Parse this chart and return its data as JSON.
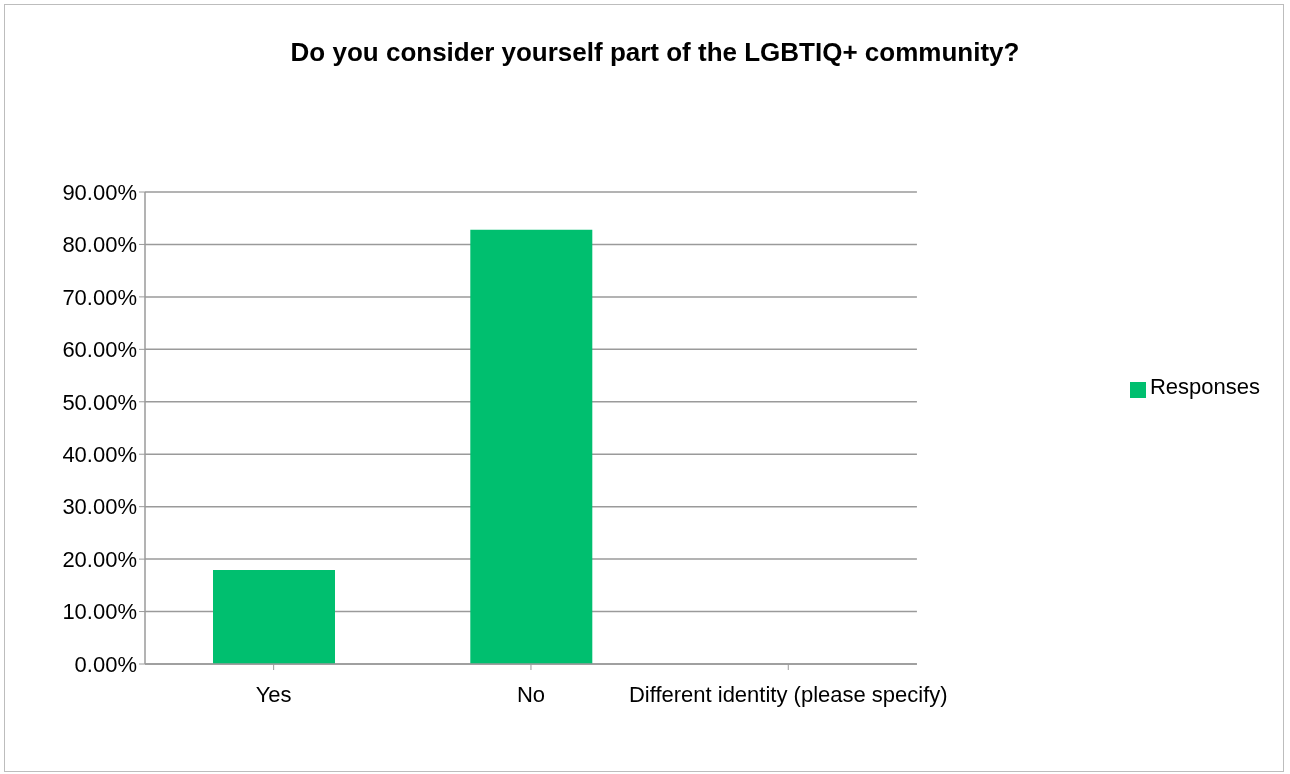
{
  "chart_data": {
    "type": "bar",
    "title": "Do you consider yourself part of the LGBTIQ+ community?",
    "categories": [
      "Yes",
      "No",
      "Different identity (please specify)"
    ],
    "series": [
      {
        "name": "Responses",
        "color": "#00bf6f",
        "values": [
          17.9,
          82.8,
          0
        ]
      }
    ],
    "ylim": [
      0,
      90
    ],
    "yticks": [
      {
        "value": 0,
        "label": "0.00%"
      },
      {
        "value": 10,
        "label": "10.00%"
      },
      {
        "value": 20,
        "label": "20.00%"
      },
      {
        "value": 30,
        "label": "30.00%"
      },
      {
        "value": 40,
        "label": "40.00%"
      },
      {
        "value": 50,
        "label": "50.00%"
      },
      {
        "value": 60,
        "label": "60.00%"
      },
      {
        "value": 70,
        "label": "70.00%"
      },
      {
        "value": 80,
        "label": "80.00%"
      },
      {
        "value": 90,
        "label": "90.00%"
      }
    ],
    "grid": "y",
    "legend": "right"
  }
}
